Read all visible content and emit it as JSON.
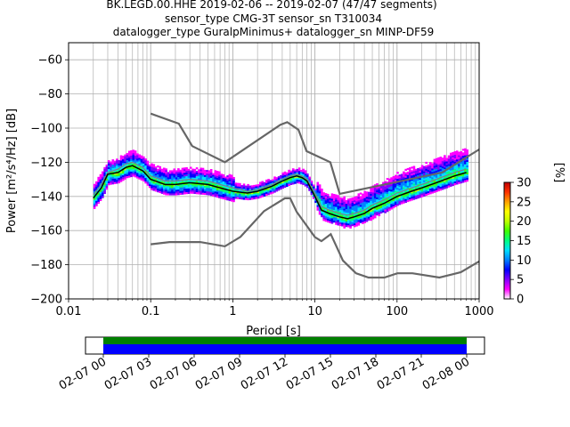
{
  "title_lines": [
    "BK.LEGD.00.HHE   2019-02-06 -- 2019-02-07  (47/47 segments)",
    "sensor_type CMG-3T sensor_sn T310034",
    "datalogger_type GuralpMinimus+ datalogger_sn MINP-DF59"
  ],
  "colorbar": {
    "label": "[%]",
    "ticks": [
      "0",
      "5",
      "10",
      "15",
      "20",
      "25",
      "30"
    ],
    "range": [
      0,
      30
    ],
    "colors": [
      "#ffffff",
      "#ff00ff",
      "#8000ff",
      "#0000ff",
      "#0080ff",
      "#00e0ff",
      "#00ff80",
      "#40ff00",
      "#c0ff00",
      "#ffff00",
      "#ffa000",
      "#ff3000",
      "#c00000"
    ]
  },
  "timeline": {
    "ticks": [
      "02-07 00",
      "02-07 03",
      "02-07 06",
      "02-07 09",
      "02-07 12",
      "02-07 15",
      "02-07 18",
      "02-07 21",
      "02-08 00"
    ],
    "colors": {
      "upper": "#008000",
      "lower": "#0000ff"
    }
  },
  "chart_data": {
    "type": "heatmap",
    "xlabel": "Period [s]",
    "ylabel": "Power [m²/s⁴/Hz] [dB]",
    "xscale": "log",
    "xlim": [
      0.01,
      1000
    ],
    "ylim": [
      -200,
      -50
    ],
    "xticks": [
      "0.01",
      "0.1",
      "1",
      "10",
      "100",
      "1000"
    ],
    "yticks": [
      "−200",
      "−180",
      "−160",
      "−140",
      "−120",
      "−100",
      "−80",
      "−60"
    ],
    "grid": true,
    "series": [
      {
        "role": "mode",
        "color": "#000000",
        "x": [
          0.02,
          0.025,
          0.03,
          0.04,
          0.05,
          0.06,
          0.08,
          0.1,
          0.15,
          0.2,
          0.3,
          0.5,
          0.7,
          1,
          1.5,
          2,
          3,
          4,
          5,
          6,
          7,
          8,
          10,
          12,
          15,
          20,
          25,
          30,
          40,
          50,
          70,
          100,
          150,
          200,
          300,
          500,
          700
        ],
        "y": [
          -141,
          -135,
          -127,
          -126,
          -123,
          -122,
          -125,
          -130,
          -133,
          -133,
          -132,
          -133,
          -135,
          -137,
          -138,
          -137,
          -134,
          -131,
          -129,
          -128,
          -129,
          -131,
          -140,
          -148,
          -150,
          -152,
          -153,
          -152,
          -150,
          -147,
          -144,
          -140,
          -137,
          -135,
          -132,
          -128,
          -126
        ]
      },
      {
        "role": "mean",
        "color": "#808080",
        "x": [
          0.02,
          0.025,
          0.03,
          0.04,
          0.05,
          0.06,
          0.08,
          0.1,
          0.15,
          0.2,
          0.3,
          0.5,
          0.7,
          1,
          1.5,
          2,
          3,
          4,
          5,
          6,
          7,
          8,
          10,
          12,
          15,
          20,
          25,
          30,
          40,
          50,
          70,
          100,
          150,
          200,
          300,
          500,
          700
        ],
        "y": [
          -139,
          -133,
          -126,
          -124,
          -121,
          -120,
          -123,
          -128,
          -131,
          -131,
          -130,
          -131,
          -133,
          -135,
          -137,
          -136,
          -133,
          -130,
          -128,
          -127,
          -128,
          -130,
          -138,
          -146,
          -148,
          -150,
          -151,
          -150,
          -148,
          -145,
          -142,
          -138,
          -135,
          -133,
          -130,
          -126,
          -124
        ]
      },
      {
        "role": "nhnm",
        "color": "#666666",
        "x": [
          0.1,
          0.22,
          0.32,
          0.8,
          3.8,
          4.6,
          6.3,
          7.9,
          15.4,
          20,
          354.8,
          1000
        ],
        "y": [
          -91.5,
          -97.4,
          -110.5,
          -120.0,
          -98.0,
          -96.5,
          -101.0,
          -113.5,
          -120.0,
          -138.5,
          -126.0,
          -112.5
        ]
      },
      {
        "role": "nlnm",
        "color": "#666666",
        "x": [
          0.1,
          0.17,
          0.4,
          0.8,
          1.24,
          2.4,
          4.3,
          5.0,
          6.0,
          10.0,
          12.0,
          15.6,
          21.9,
          31.6,
          45.0,
          70.0,
          101.0,
          154.0,
          328.0,
          600.0,
          1000.0
        ],
        "y": [
          -168.0,
          -166.7,
          -166.7,
          -169.2,
          -163.7,
          -148.6,
          -141.1,
          -141.1,
          -149.0,
          -163.8,
          -166.2,
          -162.1,
          -177.5,
          -185.0,
          -187.5,
          -187.5,
          -185.0,
          -185.0,
          -187.5,
          -184.4,
          -178.0
        ]
      }
    ]
  }
}
